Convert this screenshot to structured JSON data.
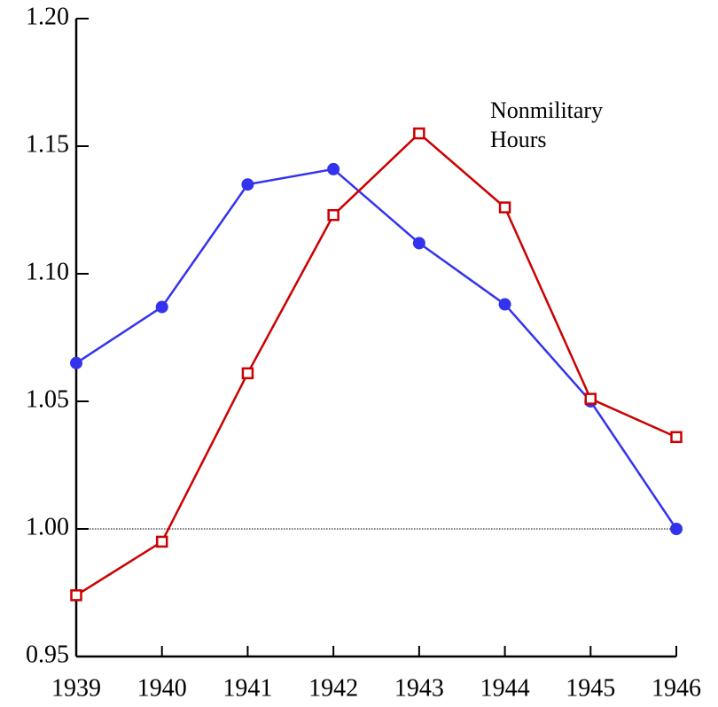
{
  "chart_data": {
    "type": "line",
    "annotation": [
      "Nonmilitary",
      "Hours"
    ],
    "x": [
      1939,
      1940,
      1941,
      1942,
      1943,
      1944,
      1945,
      1946
    ],
    "series": [
      {
        "color": "#3333ee",
        "marker": "circle",
        "values": [
          1.065,
          1.087,
          1.135,
          1.141,
          1.112,
          1.088,
          1.05,
          1.0
        ]
      },
      {
        "color": "#cc0000",
        "marker": "square",
        "values": [
          0.974,
          0.995,
          1.061,
          1.123,
          1.155,
          1.126,
          1.051,
          1.036
        ]
      }
    ],
    "xlim": [
      1939,
      1946
    ],
    "xticks": [
      1939,
      1940,
      1941,
      1942,
      1943,
      1944,
      1945,
      1946
    ],
    "ylim": [
      0.95,
      1.2
    ],
    "yticks": [
      0.95,
      {
        "value": 1.0,
        "label": "1.00"
      },
      1.05,
      {
        "value": 1.1,
        "label": "1.10"
      },
      1.15,
      {
        "value": 1.2,
        "label": "1.20"
      }
    ],
    "reference_line": 1.0
  }
}
